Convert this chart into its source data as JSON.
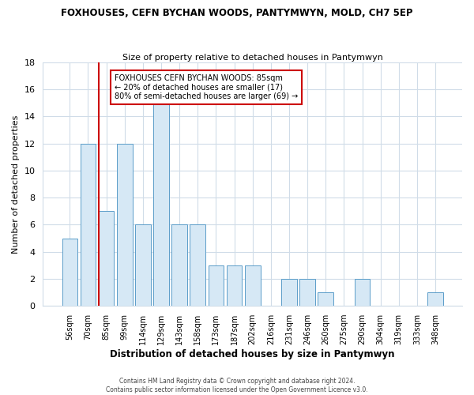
{
  "title": "FOXHOUSES, CEFN BYCHAN WOODS, PANTYMWYN, MOLD, CH7 5EP",
  "subtitle": "Size of property relative to detached houses in Pantymwyn",
  "xlabel": "Distribution of detached houses by size in Pantymwyn",
  "ylabel": "Number of detached properties",
  "bin_labels": [
    "56sqm",
    "70sqm",
    "85sqm",
    "99sqm",
    "114sqm",
    "129sqm",
    "143sqm",
    "158sqm",
    "173sqm",
    "187sqm",
    "202sqm",
    "216sqm",
    "231sqm",
    "246sqm",
    "260sqm",
    "275sqm",
    "290sqm",
    "304sqm",
    "319sqm",
    "333sqm",
    "348sqm"
  ],
  "bar_heights": [
    5,
    12,
    7,
    12,
    6,
    15,
    6,
    6,
    3,
    3,
    3,
    0,
    2,
    2,
    1,
    0,
    2,
    0,
    0,
    0,
    1
  ],
  "bar_color": "#d6e8f5",
  "bar_edge_color": "#5b9dc9",
  "highlight_line_index": 2,
  "highlight_line_color": "#cc0000",
  "ylim": [
    0,
    18
  ],
  "yticks": [
    0,
    2,
    4,
    6,
    8,
    10,
    12,
    14,
    16,
    18
  ],
  "annotation_text": "FOXHOUSES CEFN BYCHAN WOODS: 85sqm\n← 20% of detached houses are smaller (17)\n80% of semi-detached houses are larger (69) →",
  "annotation_box_color": "#ffffff",
  "annotation_box_edge_color": "#cc0000",
  "footer_line1": "Contains HM Land Registry data © Crown copyright and database right 2024.",
  "footer_line2": "Contains public sector information licensed under the Open Government Licence v3.0.",
  "background_color": "#ffffff",
  "plot_bg_color": "#ffffff",
  "grid_color": "#d0dce8"
}
